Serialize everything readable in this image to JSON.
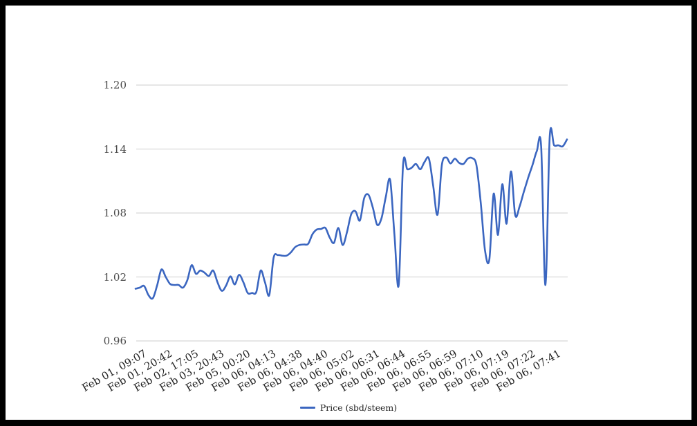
{
  "page": {
    "background": "#ffffff",
    "frame_color": "#000000"
  },
  "legend": {
    "label": "Price (sbd/steem)"
  },
  "chart_data": {
    "type": "line",
    "title": "",
    "xlabel": "",
    "ylabel": "",
    "ylim": [
      0.96,
      1.2
    ],
    "y_tick_labels": [
      "1.20",
      "1.14",
      "1.08",
      "1.02",
      "0.96"
    ],
    "y_tick_values": [
      1.2,
      1.14,
      1.08,
      1.02,
      0.96
    ],
    "x_tick_labels": [
      "Feb 01, 09:07",
      "Feb 01, 20:42",
      "Feb 02, 17:05",
      "Feb 03, 20:43",
      "Feb 05, 00:20",
      "Feb 06, 04:13",
      "Feb 06, 04:38",
      "Feb 06, 04:40",
      "Feb 06, 05:02",
      "Feb 06, 06:31",
      "Feb 06, 06:44",
      "Feb 06, 06:55",
      "Feb 06, 06:59",
      "Feb 06, 07:10",
      "Feb 06, 07:19",
      "Feb 06, 07:22",
      "Feb 06, 07:41"
    ],
    "points_per_x_label": 6,
    "grid": "horizontal-only",
    "legend_position": "bottom",
    "line_style": "smooth-curve",
    "colors": {
      "series": "#3b66c0",
      "gridline": "#cccccc",
      "y_label": "#4a4a4a",
      "x_label": "#222222"
    },
    "series": [
      {
        "name": "Price (sbd/steem)",
        "color": "#3b66c0",
        "values": [
          1.009,
          1.01,
          1.0115,
          1.003,
          1.0,
          1.012,
          1.027,
          1.02,
          1.0135,
          1.0125,
          1.0125,
          1.01,
          1.017,
          1.031,
          1.023,
          1.026,
          1.024,
          1.021,
          1.026,
          1.015,
          1.007,
          1.012,
          1.0205,
          1.013,
          1.022,
          1.015,
          1.005,
          1.005,
          1.006,
          1.026,
          1.015,
          1.003,
          1.038,
          1.0405,
          1.04,
          1.04,
          1.043,
          1.048,
          1.05,
          1.0505,
          1.051,
          1.06,
          1.0645,
          1.065,
          1.066,
          1.057,
          1.052,
          1.066,
          1.05,
          1.062,
          1.079,
          1.0815,
          1.073,
          1.094,
          1.097,
          1.085,
          1.069,
          1.075,
          1.095,
          1.111,
          1.06,
          1.0125,
          1.125,
          1.121,
          1.1225,
          1.126,
          1.121,
          1.128,
          1.131,
          1.105,
          1.0785,
          1.125,
          1.132,
          1.1265,
          1.131,
          1.127,
          1.126,
          1.131,
          1.1315,
          1.125,
          1.09,
          1.045,
          1.0365,
          1.098,
          1.0595,
          1.107,
          1.07,
          1.119,
          1.078,
          1.086,
          1.1,
          1.113,
          1.125,
          1.138,
          1.1425,
          1.0125,
          1.1515,
          1.1435,
          1.1435,
          1.1425,
          1.149
        ]
      }
    ]
  }
}
